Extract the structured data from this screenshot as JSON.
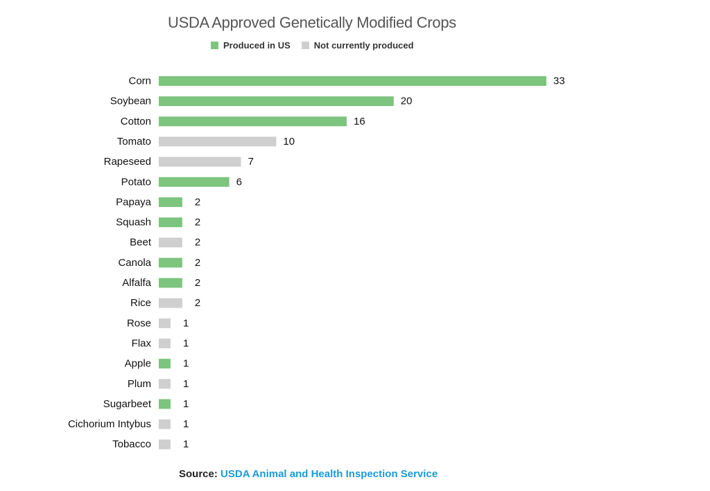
{
  "colors": {
    "produced": "#7dc47e",
    "not_produced": "#cfcfcf",
    "link": "#1a9ad7"
  },
  "chart_data": {
    "type": "bar",
    "orientation": "horizontal",
    "title": "USDA Approved Genetically Modified Crops",
    "legend": [
      {
        "label": "Produced in US",
        "color": "#7dc47e"
      },
      {
        "label": "Not currently produced",
        "color": "#cfcfcf"
      }
    ],
    "legend_position": "top",
    "grid": false,
    "xlim": [
      0,
      33
    ],
    "categories": [
      "Corn",
      "Soybean",
      "Cotton",
      "Tomato",
      "Rapeseed",
      "Potato",
      "Papaya",
      "Squash",
      "Beet",
      "Canola",
      "Alfalfa",
      "Rice",
      "Rose",
      "Flax",
      "Apple",
      "Plum",
      "Sugarbeet",
      "Cichorium Intybus",
      "Tobacco"
    ],
    "values": [
      33,
      20,
      16,
      10,
      7,
      6,
      2,
      2,
      2,
      2,
      2,
      2,
      1,
      1,
      1,
      1,
      1,
      1,
      1
    ],
    "produced_in_us": [
      true,
      true,
      true,
      false,
      false,
      true,
      true,
      true,
      false,
      true,
      true,
      false,
      false,
      false,
      true,
      false,
      true,
      false,
      false
    ]
  },
  "source": {
    "label": "Source:",
    "text": "USDA Animal and Health Inspection Service"
  }
}
